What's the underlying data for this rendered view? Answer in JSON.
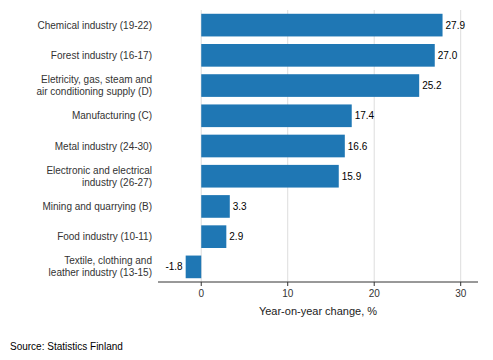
{
  "chart_data": {
    "type": "bar",
    "orientation": "horizontal",
    "categories": [
      "Chemical industry (19-22)",
      "Forest industry (16-17)",
      "Eletricity, gas, steam and\nair conditioning supply (D)",
      "Manufacturing (C)",
      "Metal industry (24-30)",
      "Electronic and electrical\nindustry (26-27)",
      "Mining and quarrying (B)",
      "Food industry (10-11)",
      "Textile, clothing and\nleather industry (13-15)"
    ],
    "values": [
      27.9,
      27.0,
      25.2,
      17.4,
      16.6,
      15.9,
      3.3,
      2.9,
      -1.8
    ],
    "value_labels": [
      "27.9",
      "27.0",
      "25.2",
      "17.4",
      "16.6",
      "15.9",
      "3.3",
      "2.9",
      "-1.8"
    ],
    "color": "#1f77b4",
    "xlabel": "Year-on-year change, %",
    "source": "Source: Statistics Finland",
    "xlim": [
      -5,
      32
    ],
    "xticks": [
      0,
      10,
      20,
      30
    ],
    "grid": true,
    "data_labels": true
  }
}
